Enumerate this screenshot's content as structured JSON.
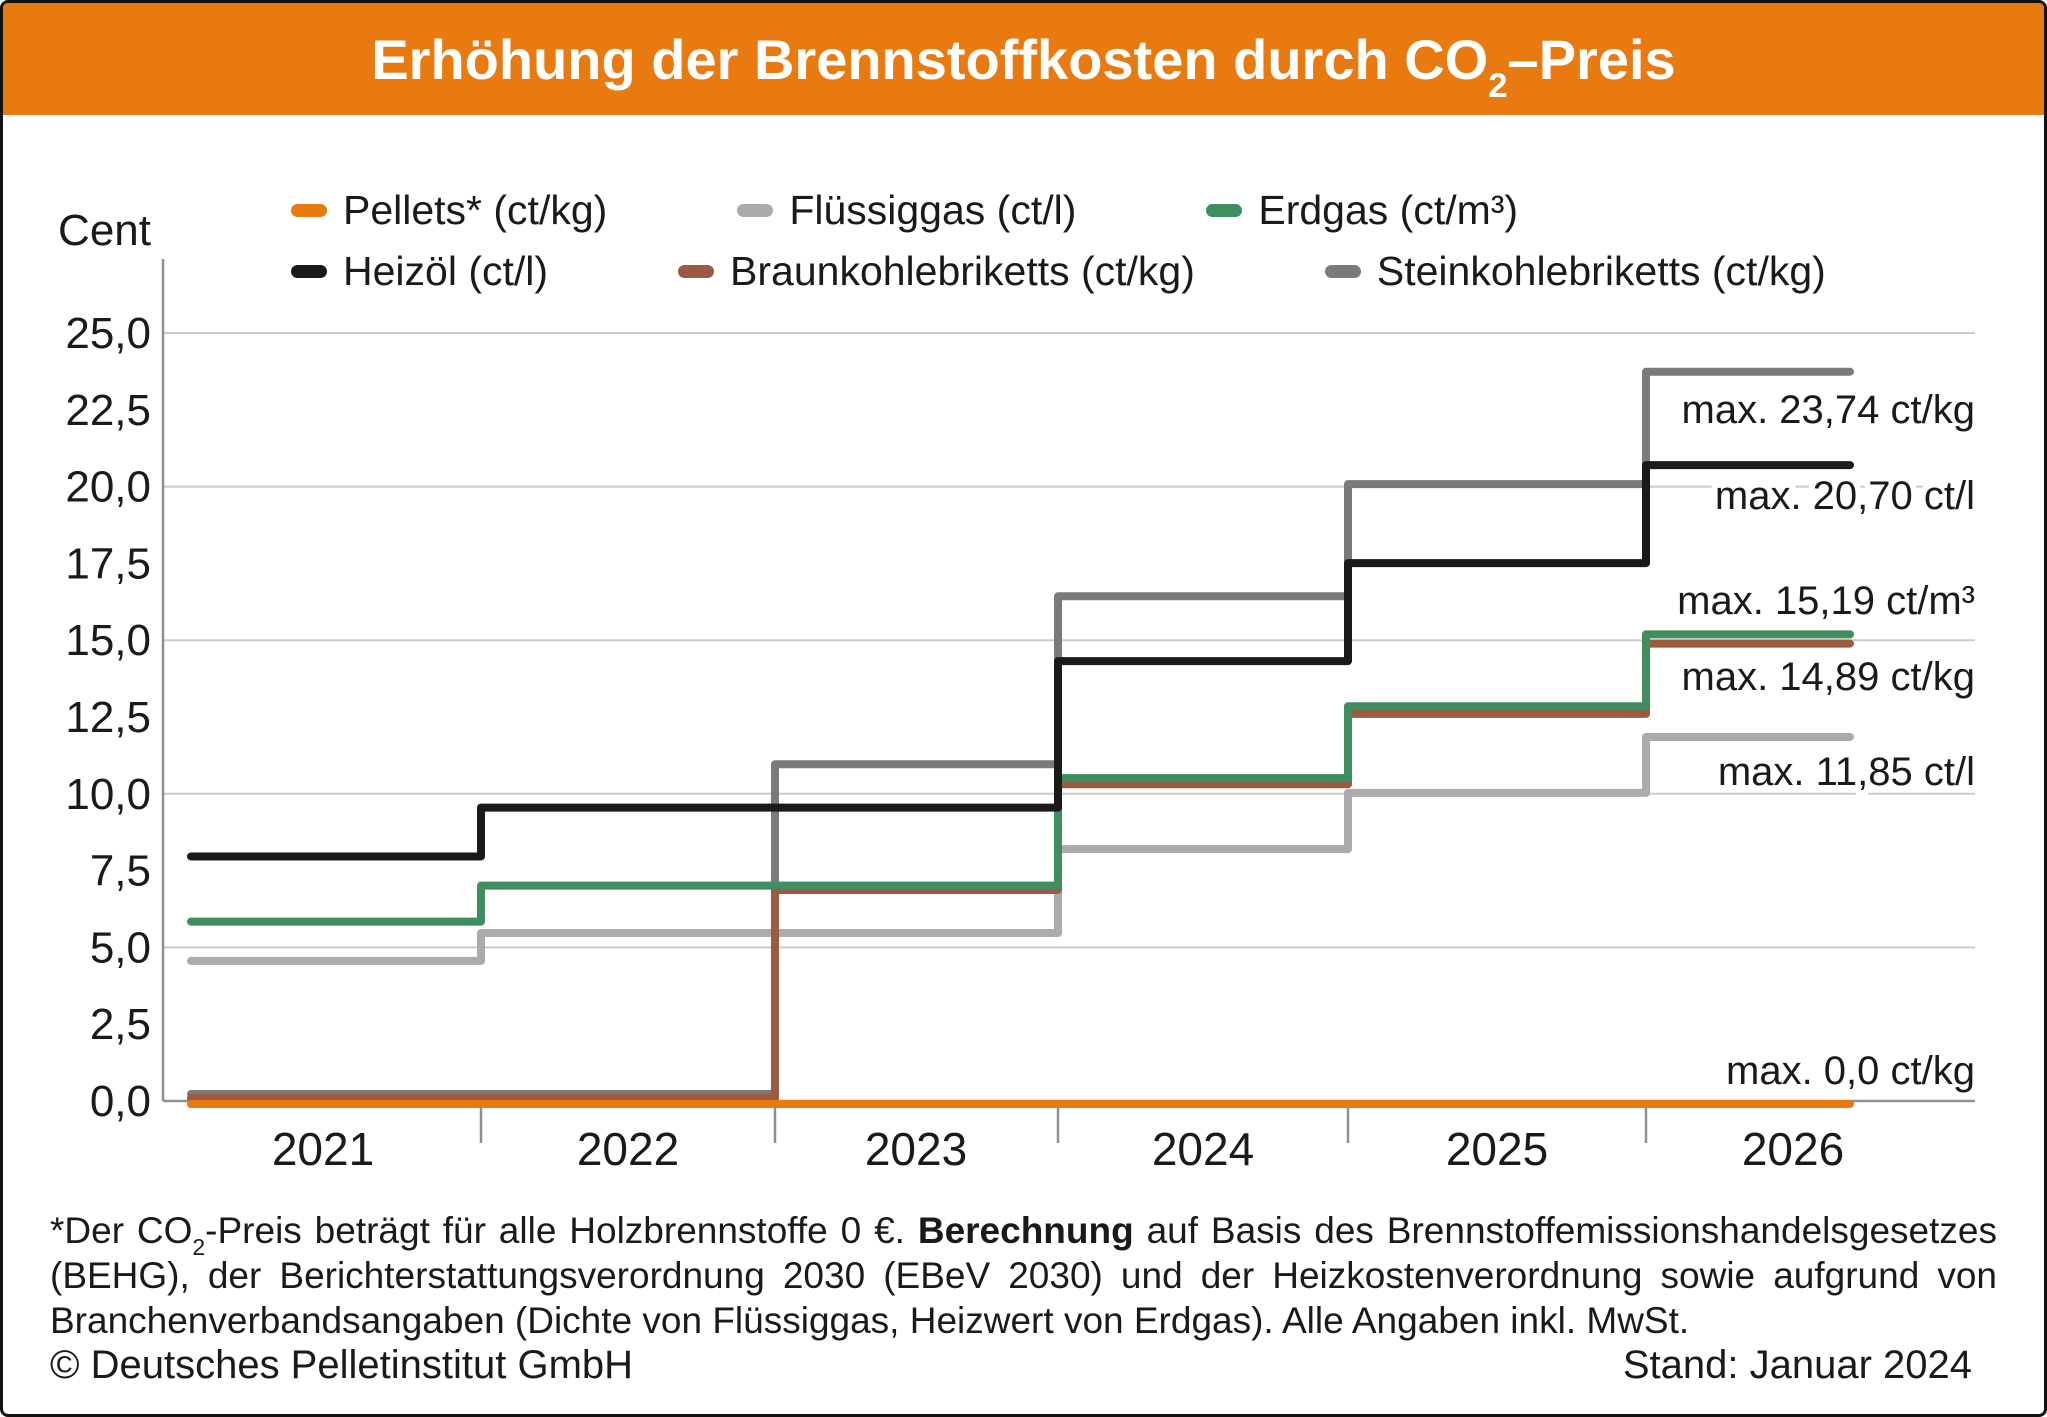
{
  "title": {
    "pre": "Erhöhung der Brennstoffkosten durch CO",
    "sub": "2",
    "post": "–Preis"
  },
  "colors": {
    "title_bar_orange": "#E87A10",
    "pellets_orange": "#E87A10",
    "fluessiggas_gray": "#ABABAB",
    "erdgas_green": "#3E8E5F",
    "heizoel_black": "#1A1A1A",
    "braunkohle_brown": "#9A5B40",
    "steinkohle_gray": "#7A7A7A",
    "gridline": "#CBCBCB",
    "axis": "#909090"
  },
  "legend": {
    "items": [
      {
        "label": "Pellets* (ct/kg)",
        "color": "#E87A10"
      },
      {
        "label": "Flüssiggas (ct/l)",
        "color": "#ABABAB"
      },
      {
        "label": "Erdgas (ct/m³)",
        "color": "#3E8E5F"
      },
      {
        "label": "Heizöl (ct/l)",
        "color": "#1A1A1A"
      },
      {
        "label": "Braunkohlebriketts (ct/kg)",
        "color": "#9A5B40"
      },
      {
        "label": "Steinkohlebriketts (ct/kg)",
        "color": "#7A7A7A"
      }
    ]
  },
  "y_axis": {
    "title": "Cent",
    "tick_labels": [
      "25,0",
      "22,5",
      "20,0",
      "17,5",
      "15,0",
      "12,5",
      "10,0",
      "7,5",
      "5,0",
      "2,5",
      "0,0"
    ],
    "tick_values": [
      25,
      22.5,
      20,
      17.5,
      15,
      12.5,
      10,
      7.5,
      5,
      2.5,
      0
    ]
  },
  "x_axis": {
    "year_labels": [
      "2021",
      "2022",
      "2023",
      "2024",
      "2025",
      "2026"
    ]
  },
  "chart_data": {
    "type": "step-line",
    "title": "Erhöhung der Brennstoffkosten durch CO₂-Preis",
    "ylabel": "Cent",
    "ylim": [
      0,
      25
    ],
    "x": [
      2021,
      2022,
      2023,
      2024,
      2025,
      2026
    ],
    "gridlines": [
      5,
      10,
      15,
      20,
      25
    ],
    "legend_position": "top",
    "series": [
      {
        "name": "Pellets* (ct/kg)",
        "color": "#E87A10",
        "values": [
          0,
          0,
          0,
          0,
          0,
          0
        ],
        "max_label": "max. 0,0 ct/kg"
      },
      {
        "name": "Flüssiggas (ct/l)",
        "color": "#ABABAB",
        "values": [
          4.56,
          5.47,
          5.47,
          8.2,
          10.03,
          11.85
        ],
        "max_label": "max. 11,85 ct/l"
      },
      {
        "name": "Erdgas (ct/m³)",
        "color": "#3E8E5F",
        "values": [
          5.84,
          7.01,
          7.01,
          10.51,
          12.85,
          15.19
        ],
        "max_label": "max. 15,19 ct/m³"
      },
      {
        "name": "Heizöl (ct/l)",
        "color": "#1A1A1A",
        "values": [
          7.96,
          9.55,
          9.55,
          14.32,
          17.51,
          20.7
        ],
        "max_label": "max. 20,70 ct/l"
      },
      {
        "name": "Braunkohlebriketts (ct/kg)",
        "color": "#9A5B40",
        "values": [
          0,
          0,
          6.87,
          10.31,
          12.6,
          14.89
        ],
        "max_label": "max. 14,89 ct/kg"
      },
      {
        "name": "Steinkohlebriketts (ct/kg)",
        "color": "#7A7A7A",
        "values": [
          0,
          0,
          10.96,
          16.43,
          20.08,
          23.74
        ],
        "max_label": "max. 23,74 ct/kg"
      }
    ]
  },
  "footnote": {
    "line1_pre": "*Der CO",
    "line1_sub": "2",
    "line1_mid": "-Preis beträgt für alle Holzbrennstoffe 0 €. ",
    "line1_bold": "Berechnung",
    "line1_end": " auf Basis des Brennstoffemissionshandelsgesetzes",
    "line2": "(BEHG), der Berichterstattungsverordnung 2030 (EBeV 2030) und der Heizkostenverordnung sowie aufgrund von",
    "line3": "Branchenverbandsangaben (Dichte von Flüssiggas, Heizwert von Erdgas). Alle Angaben inkl. MwSt."
  },
  "footer": {
    "copyright": "© Deutsches Pelletinstitut GmbH",
    "stand": "Stand: Januar 2024"
  }
}
